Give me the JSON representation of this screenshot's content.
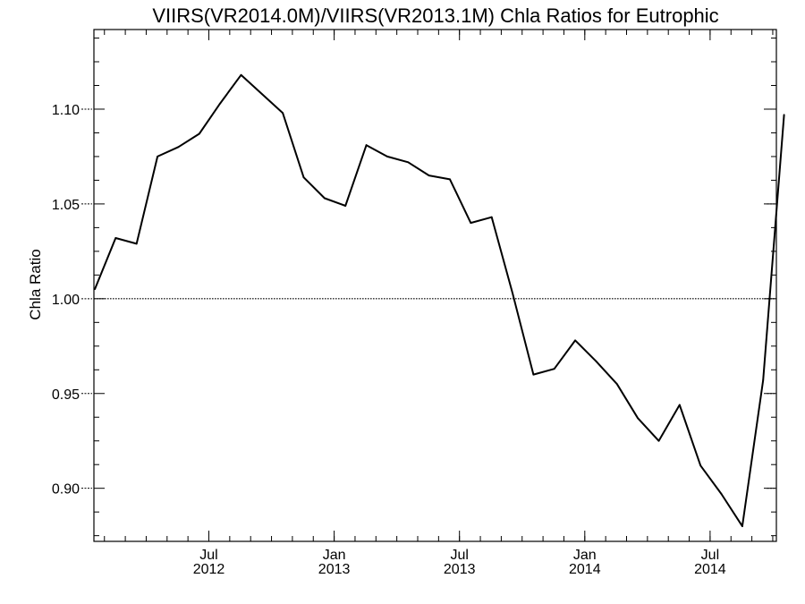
{
  "chart_data": {
    "type": "line",
    "title": "VIIRS(VR2014.0M)/VIIRS(VR2013.1M)  Chla Ratios for Eutrophic",
    "xlabel": "",
    "ylabel": "Chla Ratio",
    "ylim": [
      0.872,
      1.142
    ],
    "yticks": [
      {
        "value": 0.9,
        "label": "0.90"
      },
      {
        "value": 0.95,
        "label": "0.95"
      },
      {
        "value": 1.0,
        "label": "1.00"
      },
      {
        "value": 1.05,
        "label": "1.05"
      },
      {
        "value": 1.1,
        "label": "1.10"
      }
    ],
    "xticks": [
      {
        "month": "Jul",
        "year": "2012"
      },
      {
        "month": "Jan",
        "year": "2013"
      },
      {
        "month": "Jul",
        "year": "2013"
      },
      {
        "month": "Jan",
        "year": "2014"
      },
      {
        "month": "Jul",
        "year": "2014"
      }
    ],
    "reference_line": {
      "value": 1.0,
      "style": "dotted"
    },
    "grid": false,
    "series": [
      {
        "x": [
          "2012-01",
          "2012-02",
          "2012-03",
          "2012-04",
          "2012-05",
          "2012-06",
          "2012-07",
          "2012-08",
          "2012-09",
          "2012-10",
          "2012-11",
          "2012-12",
          "2013-01",
          "2013-02",
          "2013-03",
          "2013-04",
          "2013-05",
          "2013-06",
          "2013-07",
          "2013-08",
          "2013-09",
          "2013-10",
          "2013-11",
          "2013-12",
          "2014-01",
          "2014-02",
          "2014-03",
          "2014-04",
          "2014-05",
          "2014-06",
          "2014-07",
          "2014-08",
          "2014-09",
          "2014-10"
        ],
        "values": [
          1.005,
          1.032,
          1.029,
          1.075,
          1.08,
          1.087,
          1.103,
          1.118,
          1.108,
          1.098,
          1.064,
          1.053,
          1.049,
          1.081,
          1.075,
          1.072,
          1.065,
          1.063,
          1.04,
          1.043,
          1.003,
          0.96,
          0.963,
          0.978,
          0.967,
          0.955,
          0.937,
          0.925,
          0.944,
          0.912,
          0.897,
          0.88,
          0.957,
          1.097
        ]
      }
    ]
  }
}
